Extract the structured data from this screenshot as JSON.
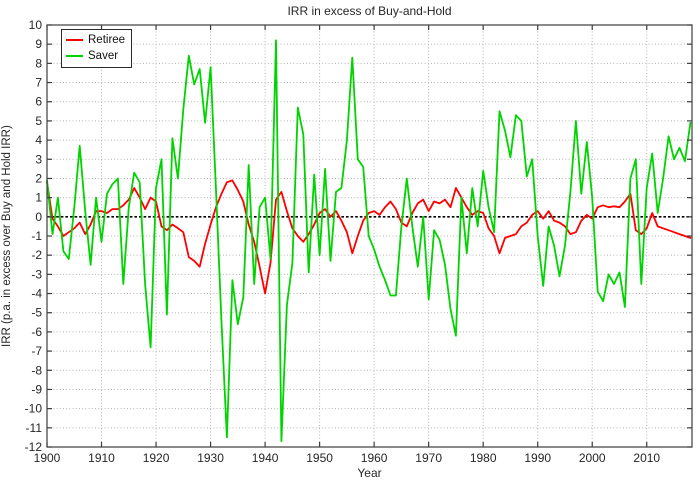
{
  "chart_data": {
    "type": "line",
    "title": "IRR in excess of Buy-and-Hold",
    "xlabel": "Year",
    "ylabel": "IRR (p.a. in excess over Buy and Hold IRR)",
    "xlim": [
      1900,
      2018.3
    ],
    "ylim": [
      -12,
      10
    ],
    "x_ticks": [
      1900,
      1910,
      1920,
      1930,
      1940,
      1950,
      1960,
      1970,
      1980,
      1990,
      2000,
      2010
    ],
    "y_ticks": [
      -12,
      -11,
      -10,
      -9,
      -8,
      -7,
      -6,
      -5,
      -4,
      -3,
      -2,
      -1,
      0,
      1,
      2,
      3,
      4,
      5,
      6,
      7,
      8,
      9,
      10
    ],
    "grid": true,
    "zero_line": true,
    "legend_position": "top-left",
    "style": {
      "grid_color": "#b3b3b3",
      "zero_line_color": "#000000",
      "axis_color": "#3c3c3c",
      "background": "#ffffff"
    },
    "years": [
      1900,
      1901,
      1902,
      1903,
      1904,
      1905,
      1906,
      1907,
      1908,
      1909,
      1910,
      1911,
      1912,
      1913,
      1914,
      1915,
      1916,
      1917,
      1918,
      1919,
      1920,
      1921,
      1922,
      1923,
      1924,
      1925,
      1926,
      1927,
      1928,
      1929,
      1930,
      1931,
      1932,
      1933,
      1934,
      1935,
      1936,
      1937,
      1938,
      1939,
      1940,
      1941,
      1942,
      1943,
      1944,
      1945,
      1946,
      1947,
      1948,
      1949,
      1950,
      1951,
      1952,
      1953,
      1954,
      1955,
      1956,
      1957,
      1958,
      1959,
      1960,
      1961,
      1962,
      1963,
      1964,
      1965,
      1966,
      1967,
      1968,
      1969,
      1970,
      1971,
      1972,
      1973,
      1974,
      1975,
      1976,
      1977,
      1978,
      1979,
      1980,
      1981,
      1982,
      1983,
      1984,
      1985,
      1986,
      1987,
      1988,
      1989,
      1990,
      1991,
      1992,
      1993,
      1994,
      1995,
      1996,
      1997,
      1998,
      1999,
      2000,
      2001,
      2002,
      2003,
      2004,
      2005,
      2006,
      2007,
      2008,
      2009,
      2010,
      2011,
      2012,
      2013,
      2014,
      2015,
      2016,
      2017,
      2018
    ],
    "series": [
      {
        "name": "Retiree",
        "color": "#ff0000",
        "values": [
          1.8,
          -0.1,
          -0.5,
          -1.0,
          -0.8,
          -0.6,
          -0.3,
          -0.9,
          -0.4,
          0.3,
          0.3,
          0.2,
          0.4,
          0.4,
          0.6,
          0.9,
          1.5,
          1.0,
          0.4,
          1.0,
          0.8,
          -0.5,
          -0.7,
          -0.4,
          -0.6,
          -0.8,
          -2.1,
          -2.3,
          -2.6,
          -1.4,
          -0.4,
          0.5,
          1.2,
          1.8,
          1.9,
          1.4,
          0.8,
          -0.4,
          -1.3,
          -2.6,
          -4.0,
          -2.4,
          0.9,
          1.3,
          0.3,
          -0.6,
          -1.0,
          -1.3,
          -0.9,
          -0.4,
          0.2,
          0.4,
          0.0,
          0.3,
          -0.2,
          -0.8,
          -1.9,
          -1.0,
          -0.2,
          0.2,
          0.3,
          0.1,
          0.5,
          0.8,
          0.4,
          -0.3,
          -0.5,
          0.2,
          0.7,
          0.9,
          0.3,
          0.8,
          0.7,
          0.9,
          0.5,
          1.5,
          1.0,
          0.5,
          0.1,
          0.3,
          0.2,
          -0.6,
          -1.0,
          -1.9,
          -1.1,
          -1.0,
          -0.9,
          -0.5,
          -0.3,
          0.1,
          0.3,
          -0.1,
          0.3,
          -0.2,
          -0.3,
          -0.5,
          -0.9,
          -0.8,
          -0.2,
          0.1,
          -0.1,
          0.5,
          0.6,
          0.5,
          0.55,
          0.5,
          0.8,
          1.2,
          -0.7,
          -0.9,
          -0.6,
          0.2,
          -0.5,
          -0.6,
          -0.7,
          -0.8,
          -0.9,
          -1.0,
          -1.1,
          -1.2
        ]
      },
      {
        "name": "Saver",
        "color": "#00d400",
        "values": [
          1.9,
          -0.9,
          1.0,
          -1.8,
          -2.2,
          0.5,
          3.7,
          0.3,
          -2.5,
          1.0,
          -1.3,
          1.2,
          1.7,
          2.0,
          -3.5,
          0.5,
          2.3,
          1.8,
          -3.5,
          -6.8,
          1.5,
          3.0,
          -5.1,
          4.1,
          2.0,
          5.6,
          8.4,
          6.9,
          7.7,
          4.9,
          7.8,
          1.4,
          -5.5,
          -11.5,
          -3.3,
          -5.6,
          -4.2,
          2.7,
          -3.5,
          0.5,
          1.0,
          -2.2,
          9.2,
          -11.7,
          -4.6,
          -2.4,
          5.7,
          4.3,
          -2.9,
          2.2,
          -2.0,
          2.5,
          -2.3,
          1.3,
          1.5,
          4.0,
          8.3,
          3.0,
          2.6,
          -1.0,
          -1.7,
          -2.6,
          -3.3,
          -4.1,
          -4.1,
          -0.5,
          2.0,
          -0.5,
          -2.6,
          0.0,
          -4.3,
          -0.7,
          -1.2,
          -2.5,
          -4.8,
          -6.2,
          1.0,
          -1.9,
          1.5,
          -0.5,
          2.4,
          0.5,
          -0.8,
          5.5,
          4.5,
          3.1,
          5.3,
          5.0,
          2.1,
          3.0,
          -1.0,
          -3.6,
          -0.5,
          -1.5,
          -3.1,
          -1.5,
          1.3,
          5.0,
          1.2,
          3.9,
          1.0,
          -3.9,
          -4.4,
          -3.0,
          -3.5,
          -2.9,
          -4.7,
          2.0,
          3.0,
          -3.5,
          1.5,
          3.3,
          0.2,
          2.0,
          4.2,
          3.0,
          3.6,
          2.9,
          4.9
        ]
      }
    ]
  }
}
